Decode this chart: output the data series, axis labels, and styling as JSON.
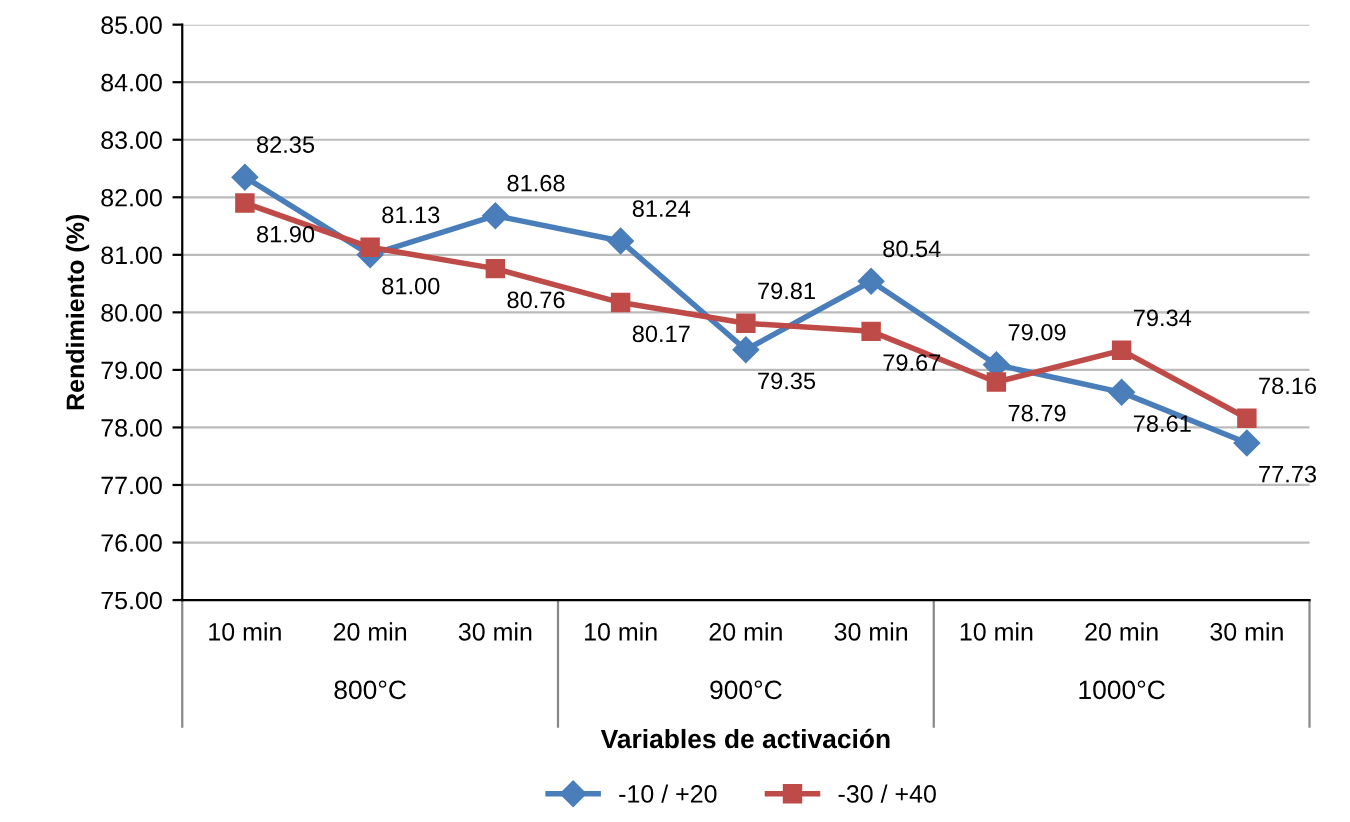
{
  "chart_data": {
    "type": "line",
    "xlabel": "Variables de activación",
    "ylabel": "Rendimiento (%)",
    "categories": [
      "10 min",
      "20 min",
      "30 min",
      "10 min",
      "20 min",
      "30 min",
      "10 min",
      "20 min",
      "30 min"
    ],
    "annotations": [
      "800°C",
      "900°C",
      "1000°C"
    ],
    "series": [
      {
        "name": "-10 / +20",
        "color": "#4a7ebb",
        "marker": "diamond",
        "values": [
          82.35,
          81.0,
          81.68,
          81.24,
          79.35,
          80.54,
          79.09,
          78.61,
          77.73
        ],
        "value_labels": [
          "82.35",
          "81.00",
          "81.68",
          "81.24",
          "79.35",
          "80.54",
          "79.09",
          "78.61",
          "77.73"
        ]
      },
      {
        "name": "-30 / +40",
        "color": "#be4b48",
        "marker": "square",
        "values": [
          81.9,
          81.13,
          80.76,
          80.17,
          79.81,
          79.67,
          78.79,
          79.34,
          78.16
        ],
        "value_labels": [
          "81.90",
          "81.13",
          "80.76",
          "80.17",
          "79.81",
          "79.67",
          "78.79",
          "79.34",
          "78.16"
        ]
      }
    ],
    "ylim": [
      75,
      85
    ],
    "yticks": [
      {
        "value": 75,
        "label": "75.00"
      },
      {
        "value": 76,
        "label": "76.00"
      },
      {
        "value": 77,
        "label": "77.00"
      },
      {
        "value": 78,
        "label": "78.00"
      },
      {
        "value": 79,
        "label": "79.00"
      },
      {
        "value": 80,
        "label": "80.00"
      },
      {
        "value": 81,
        "label": "81.00"
      },
      {
        "value": 82,
        "label": "82.00"
      },
      {
        "value": 83,
        "label": "83.00"
      },
      {
        "value": 84,
        "label": "84.00"
      },
      {
        "value": 85,
        "label": "85.00"
      }
    ],
    "grid": "y",
    "legend": "bottom",
    "line_style": "solid"
  }
}
